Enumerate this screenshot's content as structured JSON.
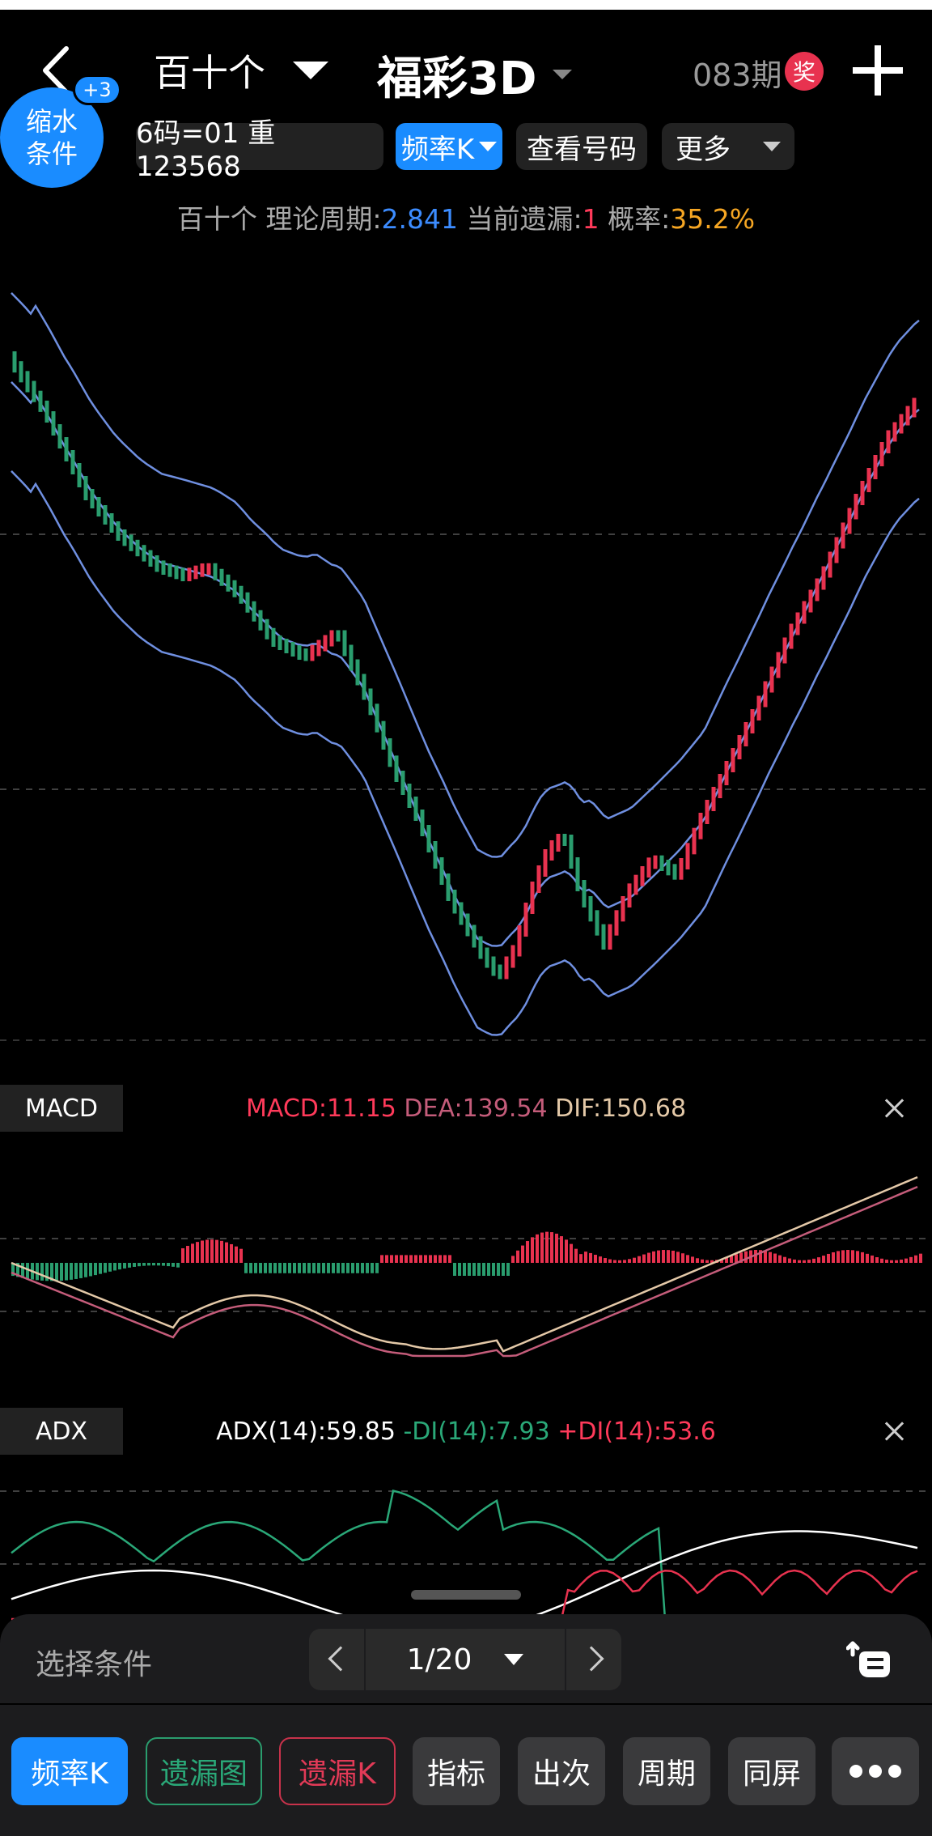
{
  "header": {
    "play_type": "百十个",
    "game_title": "福彩3D",
    "period": "083期",
    "prize_badge": "奖"
  },
  "shrink": {
    "line1": "缩水",
    "line2": "条件",
    "badge": "+3"
  },
  "chips": {
    "code_filter": "6码=01 重 123568",
    "freq_k": "频率K",
    "view_numbers": "查看号码",
    "more": "更多"
  },
  "info": {
    "prefix": "百十个",
    "theory_label": "理论周期:",
    "theory_value": "2.841",
    "miss_label": "当前遗漏:",
    "miss_value": "1",
    "prob_label": "概率:",
    "prob_value": "35.2%"
  },
  "macd": {
    "tag": "MACD",
    "macd_text": "MACD:11.15",
    "dea_text": "DEA:139.54",
    "dif_text": "DIF:150.68"
  },
  "adx": {
    "tag": "ADX",
    "adx_text": "ADX(14):59.85",
    "mdi_text": "-DI(14):7.93",
    "pdi_text": "+DI(14):53.6"
  },
  "sheet": {
    "select_label": "选择条件",
    "page_text": "1/20"
  },
  "tabs": [
    "频率K",
    "遗漏图",
    "遗漏K",
    "指标",
    "出次",
    "周期",
    "同屏"
  ],
  "colors": {
    "accent_blue": "#1a8cff",
    "up_red": "#e8324f",
    "down_green": "#2a9d6e",
    "band_blue": "#6f8fe0"
  },
  "icons": [
    "back-arrow-icon",
    "dropdown-triangle-icon",
    "plus-icon",
    "close-icon",
    "chevron-left-icon",
    "chevron-right-icon",
    "hand-pointer-icon",
    "more-dots-icon"
  ]
}
